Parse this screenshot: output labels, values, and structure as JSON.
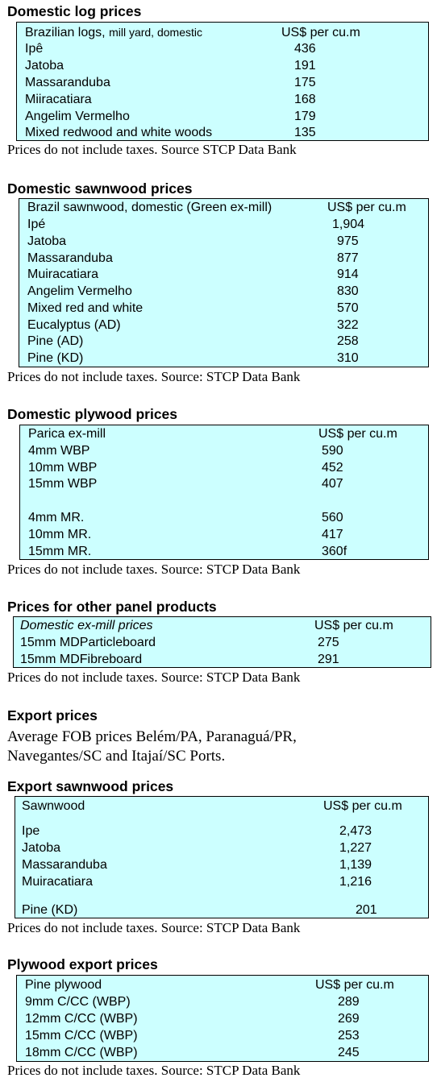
{
  "note": "Prices do not include taxes. Source STCP Data Bank",
  "note2": "Prices do not include taxes. Source: STCP Data Bank",
  "log": {
    "title": "Domestic log prices",
    "header_main": "Brazilian logs,",
    "header_sub": "mill yard, domestic",
    "unit": "US$ per cu.m",
    "rows": [
      {
        "name": "Ipê",
        "value": "436"
      },
      {
        "name": "Jatoba",
        "value": "191"
      },
      {
        "name": "Massaranduba",
        "value": "175"
      },
      {
        "name": "Miiracatiara",
        "value": "168"
      },
      {
        "name": "Angelim Vermelho",
        "value": "179"
      },
      {
        "name": "Mixed redwood and white woods",
        "value": "135"
      }
    ]
  },
  "sawn": {
    "title": "Domestic sawnwood prices",
    "header": "Brazil sawnwood, domestic (Green ex-mill)",
    "unit": "US$ per cu.m",
    "rows": [
      {
        "name": "Ipé",
        "value": "1,904"
      },
      {
        "name": "Jatoba",
        "value": "975"
      },
      {
        "name": "Massaranduba",
        "value": "877"
      },
      {
        "name": "Muiracatiara",
        "value": "914"
      },
      {
        "name": "Angelim Vermelho",
        "value": "830"
      },
      {
        "name": "Mixed red and white",
        "value": "570"
      },
      {
        "name": "Eucalyptus (AD)",
        "value": "322"
      },
      {
        "name": "Pine (AD)",
        "value": "258"
      },
      {
        "name": "Pine (KD)",
        "value": "310"
      }
    ]
  },
  "ply": {
    "title": "Domestic plywood prices",
    "header": "Parica ex-mill",
    "unit": "US$ per cu.m",
    "rows": [
      {
        "name": "4mm WBP",
        "value": "590"
      },
      {
        "name": "10mm WBP",
        "value": "452"
      },
      {
        "name": "15mm WBP",
        "value": "407"
      },
      {
        "name": "4mm MR.",
        "value": "560"
      },
      {
        "name": "10mm MR.",
        "value": "417"
      },
      {
        "name": "15mm MR.",
        "value": "360f"
      }
    ]
  },
  "panel": {
    "title": "Prices for other panel products",
    "header": "Domestic ex-mill prices",
    "unit": "US$ per cu.m",
    "rows": [
      {
        "name": "15mm MDParticleboard",
        "value": "275"
      },
      {
        "name": "15mm MDFibreboard",
        "value": "291"
      }
    ]
  },
  "export": {
    "title": "Export prices",
    "text": "Average FOB prices Belém/PA, Paranaguá/PR, Navegantes/SC and Itajaí/SC Ports."
  },
  "exsawn": {
    "title": "Export sawnwood prices",
    "header": "Sawnwood",
    "unit": "US$ per cu.m",
    "rows": [
      {
        "name": "Ipe",
        "value": "2,473"
      },
      {
        "name": "Jatoba",
        "value": "1,227"
      },
      {
        "name": "Massaranduba",
        "value": "1,139"
      },
      {
        "name": "Muiracatiara",
        "value": "1,216"
      },
      {
        "name": "Pine (KD)",
        "value": "201"
      }
    ]
  },
  "exply": {
    "title": "Plywood export prices",
    "header": "Pine plywood",
    "unit": "US$ per cu.m",
    "rows": [
      {
        "name": "9mm C/CC (WBP)",
        "value": "289"
      },
      {
        "name": "12mm C/CC (WBP)",
        "value": "269"
      },
      {
        "name": "15mm C/CC (WBP)",
        "value": "253"
      },
      {
        "name": "18mm C/CC (WBP)",
        "value": "245"
      }
    ]
  }
}
